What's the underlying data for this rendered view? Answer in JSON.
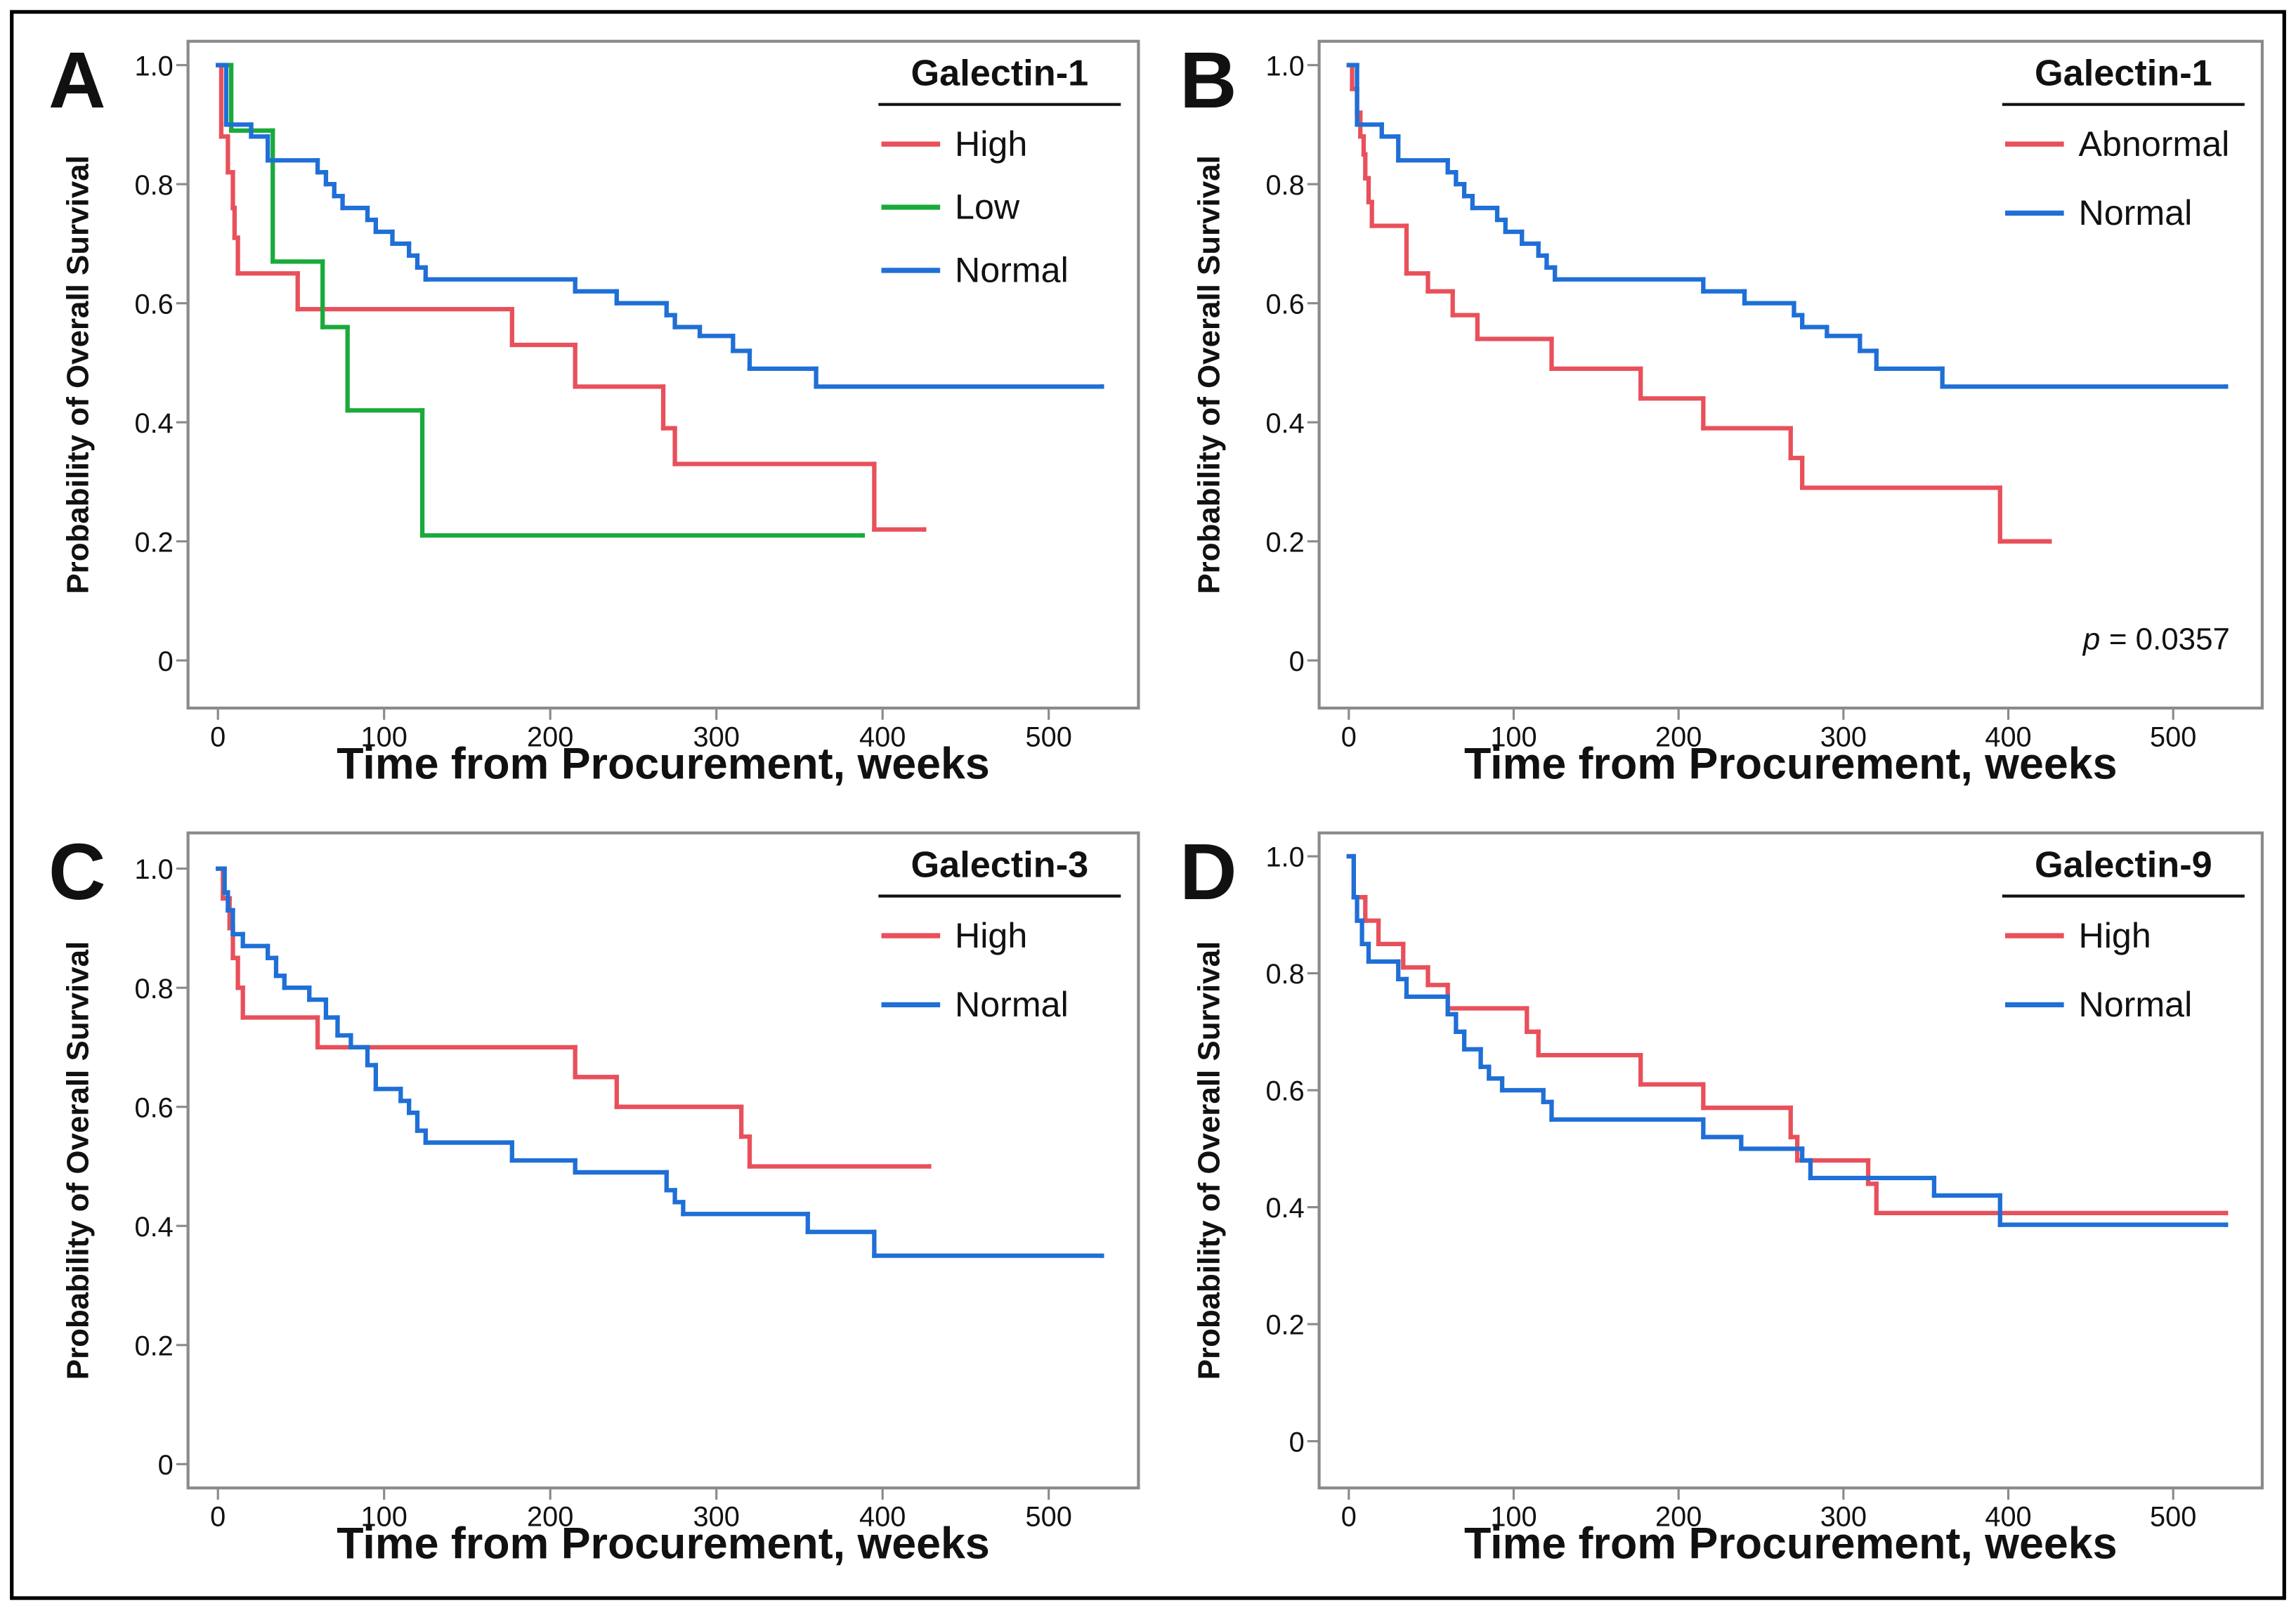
{
  "chart_data": [
    {
      "type": "step",
      "panel_label": "A",
      "xlabel": "Time from Procurement, weeks",
      "ylabel": "Probability of Overall Survival",
      "xlim": [
        -18,
        554
      ],
      "ylim": [
        -0.08,
        1.04
      ],
      "xticks": [
        0,
        100,
        200,
        300,
        400,
        500
      ],
      "yticks": [
        0,
        0.2,
        0.4,
        0.6,
        0.8,
        {
          "value": 1,
          "label": "1.0"
        }
      ],
      "legend_title": "Galectin-1",
      "legend_position": "upper right",
      "series": [
        {
          "name": "High",
          "color": "#e8505b",
          "x": [
            0,
            2,
            6,
            9,
            10,
            12,
            48,
            177,
            215,
            268,
            275,
            395,
            425
          ],
          "values": [
            1,
            0.88,
            0.82,
            0.76,
            0.71,
            0.65,
            0.59,
            0.53,
            0.46,
            0.39,
            0.33,
            0.22,
            0.22
          ]
        },
        {
          "name": "Low",
          "color": "#1aaa3a",
          "x": [
            0,
            8,
            33,
            63,
            78,
            123,
            388
          ],
          "values": [
            1,
            0.89,
            0.67,
            0.56,
            0.42,
            0.21,
            0.21
          ]
        },
        {
          "name": "Normal",
          "color": "#1f6fd6",
          "x": [
            0,
            5,
            20,
            30,
            60,
            65,
            70,
            75,
            90,
            95,
            105,
            115,
            120,
            125,
            215,
            240,
            270,
            275,
            290,
            310,
            320,
            360,
            532
          ],
          "values": [
            1,
            0.9,
            0.88,
            0.84,
            0.82,
            0.8,
            0.78,
            0.76,
            0.74,
            0.72,
            0.7,
            0.68,
            0.66,
            0.64,
            0.62,
            0.6,
            0.58,
            0.56,
            0.545,
            0.52,
            0.49,
            0.46,
            0.46
          ]
        }
      ]
    },
    {
      "type": "step",
      "panel_label": "B",
      "xlabel": "Time from Procurement, weeks",
      "ylabel": "Probability of Overall Survival",
      "xlim": [
        -18,
        554
      ],
      "ylim": [
        -0.08,
        1.04
      ],
      "xticks": [
        0,
        100,
        200,
        300,
        400,
        500
      ],
      "yticks": [
        0,
        0.2,
        0.4,
        0.6,
        0.8,
        {
          "value": 1,
          "label": "1.0"
        }
      ],
      "legend_title": "Galectin-1",
      "legend_position": "upper right",
      "annotation_italic": "p",
      "annotation": "= 0.0357",
      "series": [
        {
          "name": "Abnormal",
          "color": "#e8505b",
          "x": [
            0,
            2,
            5,
            7,
            9,
            10,
            12,
            14,
            35,
            48,
            63,
            78,
            123,
            177,
            215,
            268,
            275,
            395,
            425
          ],
          "values": [
            1,
            0.96,
            0.92,
            0.88,
            0.85,
            0.81,
            0.77,
            0.73,
            0.65,
            0.62,
            0.58,
            0.54,
            0.49,
            0.44,
            0.39,
            0.34,
            0.29,
            0.2,
            0.2
          ]
        },
        {
          "name": "Normal",
          "color": "#1f6fd6",
          "x": [
            0,
            5,
            20,
            30,
            60,
            65,
            70,
            75,
            90,
            95,
            105,
            115,
            120,
            125,
            215,
            240,
            270,
            275,
            290,
            310,
            320,
            360,
            532
          ],
          "values": [
            1,
            0.9,
            0.88,
            0.84,
            0.82,
            0.8,
            0.78,
            0.76,
            0.74,
            0.72,
            0.7,
            0.68,
            0.66,
            0.64,
            0.62,
            0.6,
            0.58,
            0.56,
            0.545,
            0.52,
            0.49,
            0.46,
            0.46
          ]
        }
      ]
    },
    {
      "type": "step",
      "panel_label": "C",
      "xlabel": "Time from Procurement, weeks",
      "ylabel": "Probability of Overall Survival",
      "xlim": [
        -18,
        554
      ],
      "ylim": [
        -0.04,
        1.06
      ],
      "xticks": [
        0,
        100,
        200,
        300,
        400,
        500
      ],
      "yticks": [
        0,
        0.2,
        0.4,
        0.6,
        0.8,
        {
          "value": 1,
          "label": "1.0"
        }
      ],
      "legend_title": "Galectin-3",
      "legend_position": "upper right",
      "series": [
        {
          "name": "High",
          "color": "#e8505b",
          "x": [
            0,
            3,
            7,
            9,
            12,
            15,
            60,
            215,
            240,
            315,
            320,
            428
          ],
          "values": [
            1,
            0.95,
            0.9,
            0.85,
            0.8,
            0.75,
            0.7,
            0.65,
            0.6,
            0.55,
            0.5,
            0.5
          ]
        },
        {
          "name": "Normal",
          "color": "#1f6fd6",
          "x": [
            0,
            4,
            6,
            9,
            15,
            30,
            35,
            40,
            55,
            65,
            72,
            80,
            90,
            95,
            110,
            115,
            120,
            125,
            177,
            215,
            270,
            275,
            280,
            355,
            395,
            532
          ],
          "values": [
            1,
            0.96,
            0.93,
            0.89,
            0.87,
            0.85,
            0.82,
            0.8,
            0.78,
            0.75,
            0.72,
            0.7,
            0.67,
            0.63,
            0.61,
            0.59,
            0.56,
            0.54,
            0.51,
            0.49,
            0.46,
            0.44,
            0.42,
            0.39,
            0.35,
            0.35
          ]
        }
      ]
    },
    {
      "type": "step",
      "panel_label": "D",
      "xlabel": "Time from Procurement, weeks",
      "ylabel": "Probability of Overall Survival",
      "xlim": [
        -18,
        554
      ],
      "ylim": [
        -0.08,
        1.04
      ],
      "xticks": [
        0,
        100,
        200,
        300,
        400,
        500
      ],
      "yticks": [
        0,
        0.2,
        0.4,
        0.6,
        0.8,
        {
          "value": 1,
          "label": "1.0"
        }
      ],
      "legend_title": "Galectin-9",
      "legend_position": "upper right",
      "series": [
        {
          "name": "High",
          "color": "#e8505b",
          "x": [
            0,
            3,
            10,
            18,
            33,
            48,
            60,
            108,
            115,
            177,
            215,
            268,
            272,
            315,
            320,
            532
          ],
          "values": [
            1,
            0.93,
            0.89,
            0.85,
            0.81,
            0.78,
            0.74,
            0.7,
            0.66,
            0.61,
            0.57,
            0.52,
            0.48,
            0.44,
            0.39,
            0.39
          ]
        },
        {
          "name": "Normal",
          "color": "#1f6fd6",
          "x": [
            0,
            3,
            5,
            8,
            12,
            30,
            35,
            60,
            65,
            70,
            80,
            85,
            93,
            118,
            123,
            215,
            238,
            275,
            280,
            355,
            395,
            532
          ],
          "values": [
            1,
            0.93,
            0.89,
            0.85,
            0.82,
            0.79,
            0.76,
            0.73,
            0.7,
            0.67,
            0.64,
            0.62,
            0.6,
            0.58,
            0.55,
            0.52,
            0.5,
            0.48,
            0.45,
            0.42,
            0.37,
            0.37
          ]
        }
      ]
    }
  ]
}
